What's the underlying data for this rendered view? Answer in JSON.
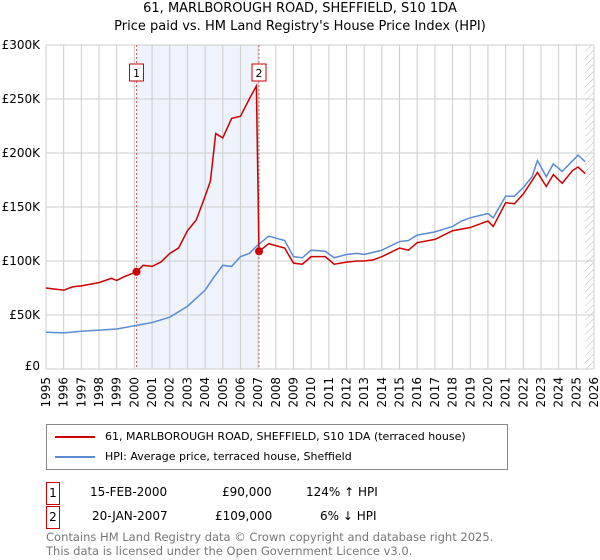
{
  "chart_data": {
    "type": "line",
    "title": "61, MARLBOROUGH ROAD, SHEFFIELD, S10 1DA",
    "subtitle": "Price paid vs. HM Land Registry's House Price Index (HPI)",
    "xlim": [
      1995,
      2026
    ],
    "ylim": [
      0,
      300000
    ],
    "x_ticks": [
      "1995",
      "1996",
      "1997",
      "1998",
      "1999",
      "2000",
      "2001",
      "2002",
      "2003",
      "2004",
      "2005",
      "2006",
      "2007",
      "2008",
      "2009",
      "2010",
      "2011",
      "2012",
      "2013",
      "2014",
      "2015",
      "2016",
      "2017",
      "2018",
      "2019",
      "2020",
      "2021",
      "2022",
      "2023",
      "2024",
      "2025",
      "2026"
    ],
    "y_ticks": [
      {
        "v": 0,
        "label": "£0"
      },
      {
        "v": 50000,
        "label": "£50K"
      },
      {
        "v": 100000,
        "label": "£100K"
      },
      {
        "v": 150000,
        "label": "£150K"
      },
      {
        "v": 200000,
        "label": "£200K"
      },
      {
        "v": 250000,
        "label": "£250K"
      },
      {
        "v": 300000,
        "label": "£300K"
      }
    ],
    "grid": true,
    "shaded_range": [
      2000.12,
      2007.05
    ],
    "forecast_hatch_from": 2025.5,
    "series": [
      {
        "name": "61, MARLBOROUGH ROAD, SHEFFIELD, S10 1DA (terraced house)",
        "color": "#cc0000",
        "points": [
          [
            1995,
            75000
          ],
          [
            1995.5,
            74000
          ],
          [
            1996,
            73000
          ],
          [
            1996.5,
            76000
          ],
          [
            1997,
            77000
          ],
          [
            1998,
            80000
          ],
          [
            1998.7,
            84000
          ],
          [
            1999,
            82000
          ],
          [
            1999.5,
            86000
          ],
          [
            2000.12,
            90000
          ],
          [
            2000.5,
            96000
          ],
          [
            2001,
            95000
          ],
          [
            2001.5,
            99000
          ],
          [
            2002,
            107000
          ],
          [
            2002.5,
            112000
          ],
          [
            2003,
            128000
          ],
          [
            2003.5,
            138000
          ],
          [
            2004,
            160000
          ],
          [
            2004.3,
            174000
          ],
          [
            2004.6,
            218000
          ],
          [
            2005,
            214000
          ],
          [
            2005.5,
            232000
          ],
          [
            2006,
            234000
          ],
          [
            2006.5,
            250000
          ],
          [
            2006.9,
            262000
          ],
          [
            2007.05,
            109000
          ],
          [
            2007.6,
            116000
          ],
          [
            2008.5,
            112000
          ],
          [
            2009,
            98000
          ],
          [
            2009.5,
            97000
          ],
          [
            2010,
            104000
          ],
          [
            2010.8,
            104000
          ],
          [
            2011.3,
            97000
          ],
          [
            2012,
            99000
          ],
          [
            2012.6,
            100000
          ],
          [
            2013,
            100000
          ],
          [
            2013.5,
            101000
          ],
          [
            2014,
            104000
          ],
          [
            2015,
            112000
          ],
          [
            2015.5,
            110000
          ],
          [
            2016,
            117000
          ],
          [
            2017,
            120000
          ],
          [
            2018,
            128000
          ],
          [
            2019,
            131000
          ],
          [
            2020,
            137000
          ],
          [
            2020.3,
            132000
          ],
          [
            2021,
            154000
          ],
          [
            2021.5,
            153000
          ],
          [
            2022,
            162000
          ],
          [
            2022.8,
            182000
          ],
          [
            2023.3,
            169000
          ],
          [
            2023.7,
            180000
          ],
          [
            2024.2,
            172000
          ],
          [
            2024.8,
            184000
          ],
          [
            2025.1,
            187000
          ],
          [
            2025.5,
            181000
          ]
        ]
      },
      {
        "name": "HPI: Average price, terraced house, Sheffield",
        "color": "#5b8bd0",
        "points": [
          [
            1995,
            34000
          ],
          [
            1996,
            33500
          ],
          [
            1997,
            35000
          ],
          [
            1998,
            36000
          ],
          [
            1999,
            37000
          ],
          [
            2000,
            40000
          ],
          [
            2001,
            43000
          ],
          [
            2002,
            48000
          ],
          [
            2003,
            58000
          ],
          [
            2004,
            73000
          ],
          [
            2004.5,
            85000
          ],
          [
            2005,
            96000
          ],
          [
            2005.5,
            95000
          ],
          [
            2006,
            104000
          ],
          [
            2006.5,
            107000
          ],
          [
            2007,
            115000
          ],
          [
            2007.6,
            123000
          ],
          [
            2008.5,
            119000
          ],
          [
            2009,
            104000
          ],
          [
            2009.5,
            103000
          ],
          [
            2010,
            110000
          ],
          [
            2010.8,
            109000
          ],
          [
            2011.3,
            103000
          ],
          [
            2012,
            106000
          ],
          [
            2012.6,
            107000
          ],
          [
            2013,
            106000
          ],
          [
            2013.5,
            108000
          ],
          [
            2014,
            110000
          ],
          [
            2015,
            118000
          ],
          [
            2015.5,
            119000
          ],
          [
            2016,
            124000
          ],
          [
            2017,
            127000
          ],
          [
            2018,
            132000
          ],
          [
            2018.5,
            137000
          ],
          [
            2019,
            140000
          ],
          [
            2020,
            144000
          ],
          [
            2020.3,
            140000
          ],
          [
            2021,
            160000
          ],
          [
            2021.5,
            160000
          ],
          [
            2022,
            168000
          ],
          [
            2022.5,
            178000
          ],
          [
            2022.8,
            193000
          ],
          [
            2023.3,
            178000
          ],
          [
            2023.7,
            190000
          ],
          [
            2024.2,
            183000
          ],
          [
            2024.8,
            193000
          ],
          [
            2025.1,
            198000
          ],
          [
            2025.5,
            192000
          ]
        ]
      }
    ],
    "markers": [
      {
        "label": "1",
        "x": 2000.12,
        "y": 90000
      },
      {
        "label": "2",
        "x": 2007.05,
        "y": 109000
      }
    ]
  },
  "legend": {
    "series1": "61, MARLBOROUGH ROAD, SHEFFIELD, S10 1DA (terraced house)",
    "series2": "HPI: Average price, terraced house, Sheffield"
  },
  "transactions": [
    {
      "num": "1",
      "date": "15-FEB-2000",
      "price": "£90,000",
      "hpi": "124% ↑ HPI"
    },
    {
      "num": "2",
      "date": "20-JAN-2007",
      "price": "£109,000",
      "hpi": "6% ↓ HPI"
    }
  ],
  "footer": {
    "line1": "Contains HM Land Registry data © Crown copyright and database right 2025.",
    "line2": "This data is licensed under the Open Government Licence v3.0."
  },
  "colors": {
    "red": "#cc0000",
    "blue": "#5b8bd0",
    "shade": "#eef3fc"
  }
}
